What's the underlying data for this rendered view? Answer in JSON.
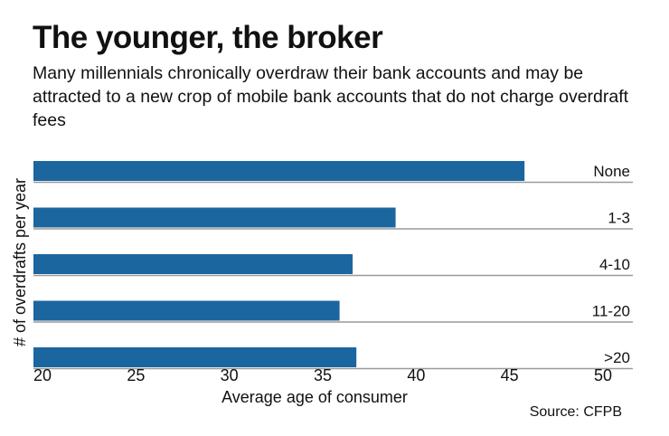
{
  "chart_data": {
    "type": "bar",
    "orientation": "horizontal",
    "title": "The younger, the broker",
    "subtitle": "Many millennials chronically overdraw their bank accounts and may be attracted to a new crop of mobile bank accounts that do not charge overdraft fees",
    "categories": [
      "None",
      "1-3",
      "4-10",
      "11-20",
      ">20"
    ],
    "values": [
      45.8,
      38.9,
      36.6,
      35.9,
      36.8
    ],
    "xlabel": "Average age of consumer",
    "ylabel": "# of overdrafts per year",
    "xlim": [
      20,
      50
    ],
    "xticks": [
      "20",
      "25",
      "30",
      "35",
      "40",
      "45",
      "50"
    ],
    "source": "Source: CFPB",
    "bar_color": "#1b669f",
    "grid": false
  }
}
